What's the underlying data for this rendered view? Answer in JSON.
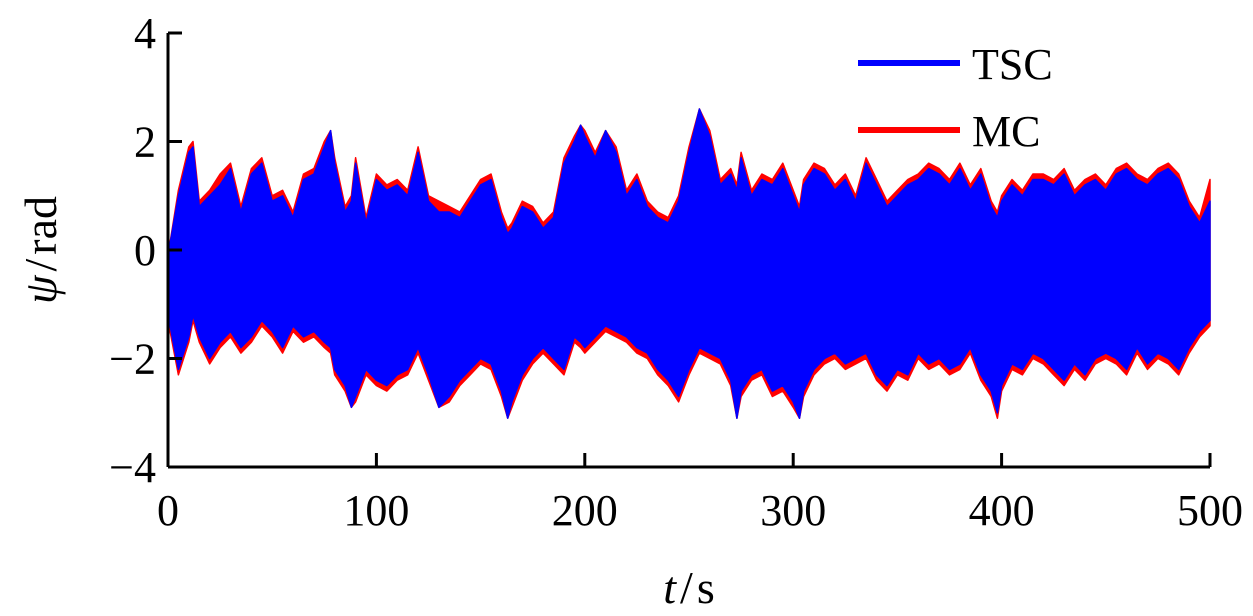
{
  "chart_data": {
    "type": "line",
    "title": "",
    "xlabel_var": "t",
    "xlabel_unit": "s",
    "ylabel_var": "ψ",
    "ylabel_unit": "rad",
    "xlim": [
      0,
      500
    ],
    "ylim": [
      -4,
      4
    ],
    "xticks": [
      0,
      100,
      200,
      300,
      400,
      500
    ],
    "yticks": [
      -4,
      -2,
      0,
      2,
      4
    ],
    "xtick_labels": [
      "0",
      "100",
      "200",
      "300",
      "400",
      "500"
    ],
    "ytick_labels": [
      "−4",
      "−2",
      "0",
      "2",
      "4"
    ],
    "grid": false,
    "legend_position": "top-right",
    "x": [
      0,
      5,
      10,
      12,
      15,
      20,
      25,
      30,
      35,
      40,
      45,
      50,
      55,
      60,
      65,
      70,
      75,
      78,
      80,
      85,
      88,
      90,
      95,
      100,
      105,
      110,
      115,
      120,
      125,
      130,
      135,
      140,
      145,
      150,
      155,
      160,
      163,
      165,
      170,
      175,
      180,
      185,
      190,
      195,
      198,
      200,
      205,
      210,
      215,
      220,
      225,
      230,
      235,
      240,
      245,
      250,
      255,
      260,
      265,
      270,
      273,
      275,
      280,
      285,
      290,
      295,
      300,
      303,
      305,
      310,
      315,
      320,
      325,
      330,
      335,
      340,
      345,
      350,
      355,
      360,
      365,
      370,
      375,
      380,
      385,
      390,
      395,
      398,
      400,
      405,
      410,
      415,
      420,
      425,
      430,
      435,
      440,
      445,
      450,
      455,
      460,
      465,
      470,
      475,
      480,
      485,
      490,
      495,
      500
    ],
    "series": [
      {
        "name": "TSC",
        "color": "#0000ff",
        "upper": [
          -0.1,
          1.0,
          1.8,
          1.9,
          0.8,
          1.0,
          1.2,
          1.5,
          0.7,
          1.4,
          1.6,
          0.9,
          1.0,
          0.6,
          1.3,
          1.4,
          1.9,
          2.2,
          1.6,
          0.7,
          0.9,
          1.6,
          0.5,
          1.3,
          1.1,
          1.2,
          1.0,
          1.8,
          0.9,
          0.7,
          0.7,
          0.6,
          0.9,
          1.2,
          1.3,
          0.6,
          0.3,
          0.4,
          0.8,
          0.7,
          0.4,
          0.6,
          1.6,
          2.0,
          2.3,
          2.1,
          1.7,
          2.2,
          1.8,
          1.0,
          1.3,
          0.8,
          0.6,
          0.5,
          0.9,
          1.8,
          2.6,
          2.1,
          1.2,
          1.4,
          1.1,
          1.7,
          1.0,
          1.3,
          1.2,
          1.5,
          1.0,
          0.7,
          1.2,
          1.5,
          1.4,
          1.1,
          1.3,
          0.9,
          1.6,
          1.2,
          0.8,
          1.0,
          1.2,
          1.3,
          1.5,
          1.4,
          1.2,
          1.5,
          1.1,
          1.4,
          0.8,
          0.6,
          0.9,
          1.2,
          1.0,
          1.3,
          1.3,
          1.2,
          1.4,
          1.0,
          1.2,
          1.3,
          1.1,
          1.4,
          1.5,
          1.3,
          1.2,
          1.4,
          1.5,
          1.3,
          0.8,
          0.5,
          0.9
        ],
        "lower": [
          -1.2,
          -2.2,
          -1.6,
          -1.2,
          -1.6,
          -2.0,
          -1.7,
          -1.5,
          -1.8,
          -1.6,
          -1.3,
          -1.5,
          -1.8,
          -1.4,
          -1.6,
          -1.5,
          -1.7,
          -1.8,
          -2.2,
          -2.5,
          -2.9,
          -2.7,
          -2.2,
          -2.4,
          -2.5,
          -2.3,
          -2.2,
          -1.8,
          -2.3,
          -2.9,
          -2.7,
          -2.4,
          -2.2,
          -2.0,
          -2.1,
          -2.6,
          -3.1,
          -2.8,
          -2.3,
          -2.0,
          -1.8,
          -2.0,
          -2.2,
          -1.6,
          -1.7,
          -1.8,
          -1.6,
          -1.4,
          -1.5,
          -1.6,
          -1.8,
          -1.9,
          -2.2,
          -2.4,
          -2.7,
          -2.2,
          -1.8,
          -1.9,
          -2.0,
          -2.4,
          -3.1,
          -2.6,
          -2.3,
          -2.2,
          -2.6,
          -2.5,
          -2.8,
          -3.1,
          -2.6,
          -2.2,
          -2.0,
          -1.9,
          -2.1,
          -2.0,
          -1.9,
          -2.3,
          -2.5,
          -2.2,
          -2.3,
          -1.9,
          -2.1,
          -2.0,
          -2.2,
          -2.1,
          -1.8,
          -2.3,
          -2.6,
          -3.0,
          -2.5,
          -2.1,
          -2.2,
          -1.9,
          -2.0,
          -2.2,
          -2.4,
          -2.1,
          -2.3,
          -2.0,
          -1.9,
          -2.0,
          -2.2,
          -1.8,
          -2.1,
          -1.9,
          -2.0,
          -2.2,
          -1.8,
          -1.5,
          -1.3
        ]
      },
      {
        "name": "MC",
        "color": "#ff0000",
        "upper": [
          -0.1,
          1.1,
          1.9,
          2.0,
          0.9,
          1.1,
          1.4,
          1.6,
          0.8,
          1.5,
          1.7,
          1.0,
          1.1,
          0.7,
          1.4,
          1.5,
          2.0,
          2.2,
          1.7,
          0.8,
          1.0,
          1.7,
          0.6,
          1.4,
          1.2,
          1.3,
          1.1,
          1.9,
          1.0,
          0.9,
          0.8,
          0.7,
          1.0,
          1.3,
          1.4,
          0.7,
          0.4,
          0.5,
          0.9,
          0.8,
          0.5,
          0.7,
          1.7,
          2.1,
          2.3,
          2.2,
          1.8,
          2.2,
          1.9,
          1.1,
          1.4,
          0.9,
          0.7,
          0.6,
          1.0,
          1.9,
          2.6,
          2.2,
          1.3,
          1.5,
          1.2,
          1.8,
          1.1,
          1.4,
          1.3,
          1.6,
          1.1,
          0.8,
          1.3,
          1.6,
          1.5,
          1.2,
          1.4,
          1.0,
          1.7,
          1.3,
          0.9,
          1.1,
          1.3,
          1.4,
          1.6,
          1.5,
          1.3,
          1.6,
          1.2,
          1.5,
          0.9,
          0.7,
          1.0,
          1.3,
          1.1,
          1.4,
          1.4,
          1.3,
          1.5,
          1.1,
          1.3,
          1.4,
          1.2,
          1.5,
          1.6,
          1.4,
          1.3,
          1.5,
          1.6,
          1.4,
          0.9,
          0.6,
          1.3
        ],
        "lower": [
          -1.3,
          -2.3,
          -1.7,
          -1.3,
          -1.7,
          -2.1,
          -1.8,
          -1.6,
          -1.9,
          -1.7,
          -1.4,
          -1.6,
          -1.9,
          -1.5,
          -1.7,
          -1.6,
          -1.8,
          -1.9,
          -2.3,
          -2.6,
          -2.9,
          -2.8,
          -2.3,
          -2.5,
          -2.6,
          -2.4,
          -2.3,
          -1.9,
          -2.4,
          -2.9,
          -2.8,
          -2.5,
          -2.3,
          -2.1,
          -2.2,
          -2.7,
          -3.1,
          -2.9,
          -2.4,
          -2.1,
          -1.9,
          -2.1,
          -2.3,
          -1.7,
          -1.8,
          -1.9,
          -1.7,
          -1.5,
          -1.6,
          -1.7,
          -1.9,
          -2.0,
          -2.3,
          -2.5,
          -2.8,
          -2.3,
          -1.9,
          -2.0,
          -2.1,
          -2.5,
          -3.1,
          -2.7,
          -2.4,
          -2.3,
          -2.7,
          -2.6,
          -2.9,
          -3.1,
          -2.7,
          -2.3,
          -2.1,
          -2.0,
          -2.2,
          -2.1,
          -2.0,
          -2.4,
          -2.6,
          -2.3,
          -2.4,
          -2.0,
          -2.2,
          -2.1,
          -2.3,
          -2.2,
          -1.9,
          -2.4,
          -2.7,
          -3.1,
          -2.6,
          -2.2,
          -2.3,
          -2.0,
          -2.1,
          -2.3,
          -2.5,
          -2.2,
          -2.4,
          -2.1,
          -2.0,
          -2.1,
          -2.3,
          -1.9,
          -2.2,
          -2.0,
          -2.1,
          -2.3,
          -1.9,
          -1.6,
          -1.4
        ]
      }
    ]
  }
}
